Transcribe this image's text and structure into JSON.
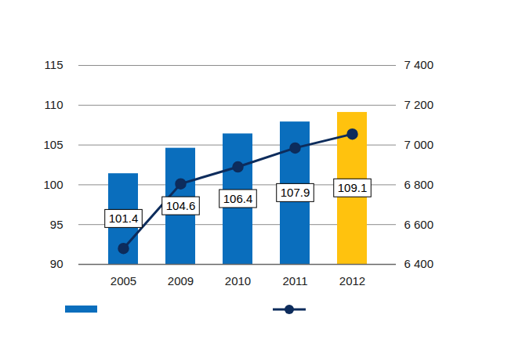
{
  "chart_data": {
    "type": "bar",
    "categories": [
      "2005",
      "2009",
      "2010",
      "2011",
      "2012"
    ],
    "series": [
      {
        "type": "bar",
        "values": [
          101.4,
          104.6,
          106.4,
          107.9,
          109.1
        ],
        "colors": [
          "#0a6ebd",
          "#0a6ebd",
          "#0a6ebd",
          "#0a6ebd",
          "#ffc20e"
        ],
        "data_labels": true
      },
      {
        "type": "line",
        "axis": "y2",
        "color": "#0d2c5c",
        "marker": "circle",
        "values": [
          6480,
          6805,
          6890,
          6985,
          7055
        ]
      }
    ],
    "ylim": [
      90,
      115
    ],
    "yticks": [
      90,
      95,
      100,
      105,
      110,
      115
    ],
    "y2lim": [
      6400,
      7400
    ],
    "y2ticks": [
      {
        "value": 6400,
        "label": "6 400"
      },
      {
        "value": 6600,
        "label": "6 600"
      },
      {
        "value": 6800,
        "label": "6 800"
      },
      {
        "value": 7000,
        "label": "7 000"
      },
      {
        "value": 7200,
        "label": "7 200"
      },
      {
        "value": 7400,
        "label": "7 400"
      }
    ],
    "grid": true,
    "legend": "bottom"
  }
}
